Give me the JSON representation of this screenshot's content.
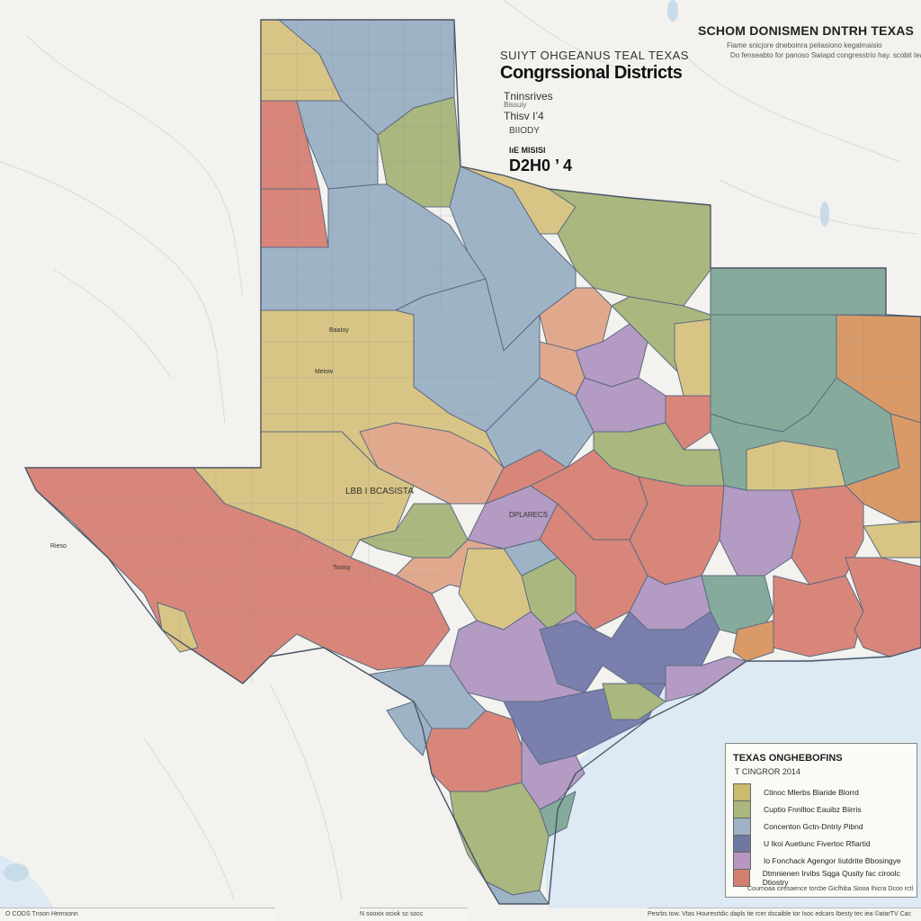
{
  "header": {
    "top_right_title": "SCHOM DONISMEN DNTRH TEXAS",
    "top_right_sub1": "Fiame snicjore dneboinra peliasiono kegalmaisio",
    "top_right_sub2": "Do fenseabto for panoso Swiapd congresstrio hay. scobit teas",
    "kicker": "SUIYT OHGEANUS TEAL TEXAS",
    "title": "Congrssional Districts",
    "meta_line1": "Tninsrives",
    "meta_line2": "Bissuiy",
    "meta_line3": "Thisv I’4",
    "meta_line4": "BIIODY",
    "meta_line5": "IıE MISISI",
    "meta_line6": "D2H0 ’ 4"
  },
  "map_labels": {
    "panhandle": "BaaIoy",
    "west_central": "Meiow",
    "trans_pecos": "LBB I BCASISTA",
    "central": "DPLARECS",
    "southwest": "Tooisy",
    "far_west": "Rieso"
  },
  "legend": {
    "title": "TEXAS ONGHEBOFINS",
    "subtitle": "T CINGROR 2014",
    "items": [
      {
        "label": "Ctinoc Mlerbs Blaride Blorrd",
        "color": "#c9bb6f"
      },
      {
        "label": "Cuptio Fnnlltoc Eauibz Biirris",
        "color": "#aab77e"
      },
      {
        "label": "Concenton Gctn-Dntriy Pibnd",
        "color": "#9fb3c6"
      },
      {
        "label": "U Ikoi Auetiunc Fivertoc Rfiartid",
        "color": "#6f77a3"
      },
      {
        "label": "Io Fonchack Agengor Iiutdrite Bbosingye",
        "color": "#b896c0"
      },
      {
        "label": "Dtmnienen Irvibs Sqga Qusity fac ciroolc Dtiostry",
        "color": "#d47f6f"
      }
    ],
    "footnote": "Cournoaa ciresaence torcbe Gicfhiba Siooa Ihicra Dcoo rctl"
  },
  "footer": {
    "left": "O CODS Tnson Hemsonn",
    "center": "N sooxix ociok sc socc",
    "right": "Pesrbs  tow.   Vtas  Houresrtdic  dapls  tie  rcer  dscaible  tor  Isoc  edcars  Ibesty  tec  iea  ©atarTV  Cac"
  },
  "colors": {
    "water": "#dde9f3",
    "land": "#f3f2ee",
    "blue": "#9fb3c6",
    "yellow": "#d8c585",
    "red": "#d8867a",
    "green": "#aab77e",
    "purple": "#b39bc3",
    "indigo": "#7a7fae",
    "teal": "#86ab9c",
    "orange": "#d99a68"
  }
}
